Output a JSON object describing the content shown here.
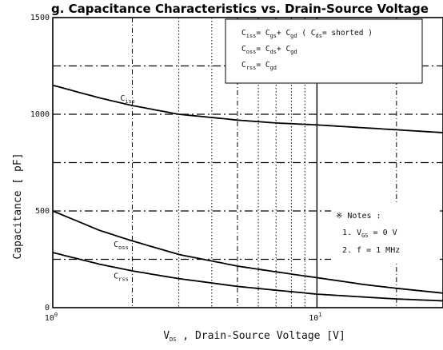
{
  "chart_data": {
    "type": "line",
    "title": "g. Capacitance Characteristics vs. Drain-Source Voltage",
    "x_scale": "log",
    "x_range": [
      1,
      30
    ],
    "y_range": [
      0,
      1500
    ],
    "x_ticks": [
      {
        "value": 1,
        "base": "10",
        "exp": "0"
      },
      {
        "value": 10,
        "base": "10",
        "exp": "1"
      }
    ],
    "y_ticks": [
      0,
      500,
      1000,
      1500
    ],
    "xlabel": {
      "pre": "V",
      "sub": "DS",
      "post": " , Drain-Source Voltage [V]"
    },
    "ylabel": "Capacitance [ pF]",
    "grid": true,
    "legend_position": "top-right",
    "legend": [
      {
        "pre": "C",
        "sub": "iss",
        "text": "= C",
        "sub2": "gs",
        "text2": "+ C",
        "sub3": "gd",
        "tail": " ( C",
        "sub4": "ds",
        "tail2": "= shorted )"
      },
      {
        "pre": "C",
        "sub": "oss",
        "text": "= C",
        "sub2": "ds",
        "text2": "+ C",
        "sub3": "gd",
        "tail": "",
        "sub4": "",
        "tail2": ""
      },
      {
        "pre": "C",
        "sub": "rss",
        "text": "= C",
        "sub2": "gd",
        "text2": "",
        "sub3": "",
        "tail": "",
        "sub4": "",
        "tail2": ""
      }
    ],
    "series": [
      {
        "name": "Ciss",
        "label_pre": "C",
        "label_sub": "iss",
        "x": [
          1,
          1.5,
          2,
          3,
          5,
          7,
          10,
          15,
          20,
          30
        ],
        "values": [
          1150,
          1085,
          1045,
          1000,
          970,
          955,
          945,
          930,
          920,
          905
        ]
      },
      {
        "name": "Coss",
        "label_pre": "C",
        "label_sub": "oss",
        "x": [
          1,
          1.5,
          2,
          3,
          5,
          7,
          10,
          15,
          20,
          30
        ],
        "values": [
          500,
          400,
          345,
          275,
          215,
          185,
          155,
          120,
          100,
          75
        ]
      },
      {
        "name": "Crss",
        "label_pre": "C",
        "label_sub": "rss",
        "x": [
          1,
          1.5,
          2,
          3,
          5,
          7,
          10,
          15,
          20,
          30
        ],
        "values": [
          285,
          225,
          190,
          150,
          110,
          90,
          70,
          55,
          45,
          35
        ]
      }
    ],
    "notes": {
      "heading": "※ Notes :",
      "lines": [
        {
          "pre": "1. V",
          "sub": "GS",
          "post": " = 0 V"
        },
        {
          "pre": "2. f = 1 MHz",
          "sub": "",
          "post": ""
        }
      ]
    }
  }
}
